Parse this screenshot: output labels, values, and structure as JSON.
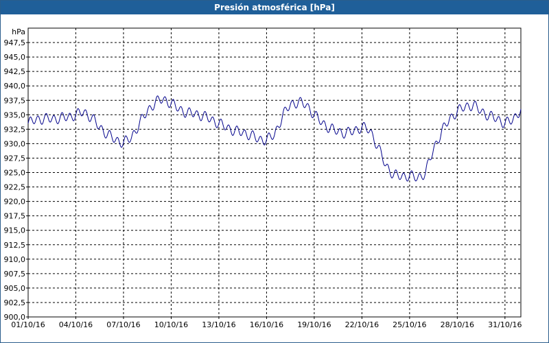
{
  "window": {
    "title": "Presión atmosférica [hPa]"
  },
  "colors": {
    "title_bar": "#1f5f99",
    "series_line": "#00008b",
    "grid": "#000000",
    "background": "#ffffff"
  },
  "chart_data": {
    "type": "line",
    "title": "Presión atmosférica [hPa]",
    "ylabel": "hPa",
    "xlabel": "",
    "ylim": [
      900.0,
      950.0
    ],
    "grid": true,
    "y_ticks": [
      "900,0",
      "902,5",
      "905,0",
      "907,5",
      "910,0",
      "912,5",
      "915,0",
      "917,5",
      "920,0",
      "922,5",
      "925,0",
      "927,5",
      "930,0",
      "932,5",
      "935,0",
      "937,5",
      "940,0",
      "942,5",
      "945,0",
      "947,5"
    ],
    "x_ticks": [
      "01/10/16",
      "04/10/16",
      "07/10/16",
      "10/10/16",
      "13/10/16",
      "16/10/16",
      "19/10/16",
      "22/10/16",
      "25/10/16",
      "28/10/16",
      "31/10/16"
    ],
    "x_range_days": [
      0,
      31.0
    ],
    "series": [
      {
        "x_days": [
          0,
          0.5,
          1,
          1.5,
          2,
          2.5,
          3,
          3.5,
          4,
          4.5,
          5,
          5.5,
          6,
          6.5,
          7,
          7.5,
          8,
          8.5,
          9,
          9.5,
          10,
          10.5,
          11,
          11.5,
          12,
          12.5,
          13,
          13.5,
          14,
          14.5,
          15,
          15.5,
          16,
          16.5,
          17,
          17.5,
          18,
          18.5,
          19,
          19.5,
          20,
          20.5,
          21,
          21.5,
          22,
          22.5,
          23,
          23.5,
          24,
          24.5,
          25,
          25.5,
          26,
          26.5,
          27,
          27.5,
          28,
          28.5,
          29,
          29.5,
          30,
          30.5,
          31
        ],
        "values": [
          933.5,
          934.2,
          934.3,
          934.3,
          934.4,
          934.6,
          935.0,
          935.5,
          934.5,
          932.8,
          931.6,
          930.6,
          930.2,
          931.0,
          933.5,
          935.6,
          937.2,
          937.7,
          937.0,
          936.0,
          935.3,
          935.2,
          934.8,
          934.2,
          933.5,
          932.8,
          932.2,
          931.9,
          931.5,
          930.7,
          930.7,
          931.5,
          934.8,
          936.8,
          937.2,
          936.7,
          935.0,
          933.6,
          932.6,
          932.1,
          931.8,
          932.2,
          932.9,
          932.3,
          929.5,
          926.2,
          924.6,
          924.3,
          924.5,
          924.0,
          925.0,
          929.0,
          932.0,
          934.2,
          935.6,
          936.4,
          936.7,
          935.6,
          934.8,
          934.3,
          933.5,
          934.1,
          936.0
        ]
      }
    ]
  }
}
